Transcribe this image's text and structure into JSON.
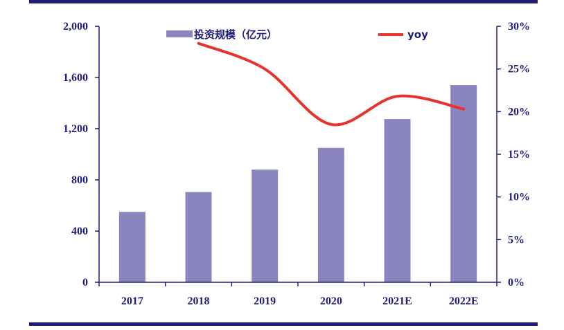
{
  "chart_data": {
    "type": "bar",
    "categories": [
      "2017",
      "2018",
      "2019",
      "2020",
      "2021E",
      "2022E"
    ],
    "series": [
      {
        "name": "投资规模（亿元）",
        "type": "bar",
        "axis": "left",
        "color": "#8a84bf",
        "values": [
          550,
          705,
          880,
          1050,
          1275,
          1540
        ]
      },
      {
        "name": "yoy",
        "type": "line",
        "axis": "right",
        "color": "#e8322e",
        "values": [
          null,
          0.28,
          0.25,
          0.185,
          0.218,
          0.203
        ]
      }
    ],
    "y_left": {
      "min": 0,
      "max": 2000,
      "ticks": [
        "0",
        "400",
        "800",
        "1,200",
        "1,600",
        "2,000"
      ]
    },
    "y_right": {
      "min": 0,
      "max": 0.3,
      "ticks": [
        "0%",
        "5%",
        "10%",
        "15%",
        "20%",
        "25%",
        "30%"
      ]
    },
    "legend": {
      "bar_label": "投资规模（亿元）",
      "line_label": "yoy",
      "placement": "top"
    },
    "grid": false
  }
}
